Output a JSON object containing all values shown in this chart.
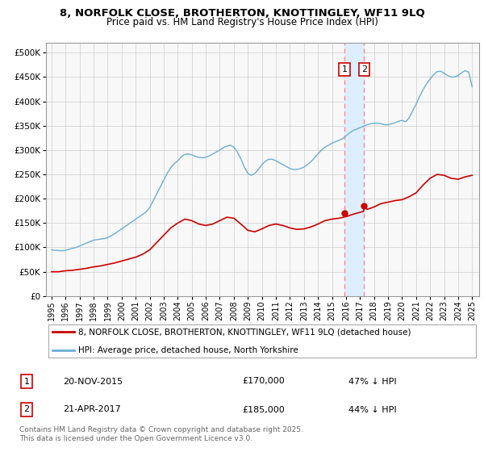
{
  "title_line1": "8, NORFOLK CLOSE, BROTHERTON, KNOTTINGLEY, WF11 9LQ",
  "title_line2": "Price paid vs. HM Land Registry's House Price Index (HPI)",
  "yticks": [
    0,
    50000,
    100000,
    150000,
    200000,
    250000,
    300000,
    350000,
    400000,
    450000,
    500000
  ],
  "ytick_labels": [
    "£0",
    "£50K",
    "£100K",
    "£150K",
    "£200K",
    "£250K",
    "£300K",
    "£350K",
    "£400K",
    "£450K",
    "£500K"
  ],
  "xlim_start": 1994.6,
  "xlim_end": 2025.5,
  "ylim_min": 0,
  "ylim_max": 520000,
  "hpi_color": "#6baed6",
  "price_color": "#cc0000",
  "vline_color": "#ff8888",
  "shade_color": "#ddeeff",
  "transactions": [
    {
      "year": 2015.9,
      "price": 170000,
      "label": "1",
      "date": "20-NOV-2015",
      "amount": "£170,000",
      "pct": "47% ↓ HPI"
    },
    {
      "year": 2017.3,
      "price": 185000,
      "label": "2",
      "date": "21-APR-2017",
      "amount": "£185,000",
      "pct": "44% ↓ HPI"
    }
  ],
  "legend_entry1": "8, NORFOLK CLOSE, BROTHERTON, KNOTTINGLEY, WF11 9LQ (detached house)",
  "legend_entry2": "HPI: Average price, detached house, North Yorkshire",
  "footer": "Contains HM Land Registry data © Crown copyright and database right 2025.\nThis data is licensed under the Open Government Licence v3.0.",
  "hpi_data": [
    [
      1995,
      95000
    ],
    [
      1995.25,
      94000
    ],
    [
      1995.5,
      93500
    ],
    [
      1995.75,
      93000
    ],
    [
      1996,
      94000
    ],
    [
      1996.25,
      96000
    ],
    [
      1996.5,
      98000
    ],
    [
      1996.75,
      100000
    ],
    [
      1997,
      103000
    ],
    [
      1997.25,
      106000
    ],
    [
      1997.5,
      109000
    ],
    [
      1997.75,
      112000
    ],
    [
      1998,
      115000
    ],
    [
      1998.25,
      116000
    ],
    [
      1998.5,
      117000
    ],
    [
      1998.75,
      118000
    ],
    [
      1999,
      120000
    ],
    [
      1999.25,
      124000
    ],
    [
      1999.5,
      128000
    ],
    [
      1999.75,
      133000
    ],
    [
      2000,
      138000
    ],
    [
      2000.25,
      143000
    ],
    [
      2000.5,
      148000
    ],
    [
      2000.75,
      153000
    ],
    [
      2001,
      158000
    ],
    [
      2001.25,
      163000
    ],
    [
      2001.5,
      168000
    ],
    [
      2001.75,
      173000
    ],
    [
      2002,
      182000
    ],
    [
      2002.25,
      196000
    ],
    [
      2002.5,
      210000
    ],
    [
      2002.75,
      224000
    ],
    [
      2003,
      238000
    ],
    [
      2003.25,
      252000
    ],
    [
      2003.5,
      264000
    ],
    [
      2003.75,
      272000
    ],
    [
      2004,
      278000
    ],
    [
      2004.25,
      286000
    ],
    [
      2004.5,
      291000
    ],
    [
      2004.75,
      292000
    ],
    [
      2005,
      290000
    ],
    [
      2005.25,
      287000
    ],
    [
      2005.5,
      285000
    ],
    [
      2005.75,
      284000
    ],
    [
      2006,
      285000
    ],
    [
      2006.25,
      288000
    ],
    [
      2006.5,
      292000
    ],
    [
      2006.75,
      296000
    ],
    [
      2007,
      300000
    ],
    [
      2007.25,
      305000
    ],
    [
      2007.5,
      308000
    ],
    [
      2007.75,
      310000
    ],
    [
      2008,
      306000
    ],
    [
      2008.25,
      296000
    ],
    [
      2008.5,
      282000
    ],
    [
      2008.75,
      265000
    ],
    [
      2009,
      252000
    ],
    [
      2009.25,
      248000
    ],
    [
      2009.5,
      252000
    ],
    [
      2009.75,
      260000
    ],
    [
      2010,
      270000
    ],
    [
      2010.25,
      277000
    ],
    [
      2010.5,
      281000
    ],
    [
      2010.75,
      281000
    ],
    [
      2011,
      278000
    ],
    [
      2011.25,
      274000
    ],
    [
      2011.5,
      270000
    ],
    [
      2011.75,
      266000
    ],
    [
      2012,
      262000
    ],
    [
      2012.25,
      260000
    ],
    [
      2012.5,
      260000
    ],
    [
      2012.75,
      262000
    ],
    [
      2013,
      265000
    ],
    [
      2013.25,
      270000
    ],
    [
      2013.5,
      276000
    ],
    [
      2013.75,
      284000
    ],
    [
      2014,
      292000
    ],
    [
      2014.25,
      300000
    ],
    [
      2014.5,
      306000
    ],
    [
      2014.75,
      310000
    ],
    [
      2015,
      314000
    ],
    [
      2015.25,
      317000
    ],
    [
      2015.5,
      320000
    ],
    [
      2015.75,
      323000
    ],
    [
      2016,
      329000
    ],
    [
      2016.25,
      335000
    ],
    [
      2016.5,
      340000
    ],
    [
      2016.75,
      343000
    ],
    [
      2017,
      346000
    ],
    [
      2017.25,
      349000
    ],
    [
      2017.5,
      352000
    ],
    [
      2017.75,
      354000
    ],
    [
      2018,
      355000
    ],
    [
      2018.25,
      355000
    ],
    [
      2018.5,
      354000
    ],
    [
      2018.75,
      352000
    ],
    [
      2019,
      352000
    ],
    [
      2019.25,
      354000
    ],
    [
      2019.5,
      356000
    ],
    [
      2019.75,
      359000
    ],
    [
      2020,
      361000
    ],
    [
      2020.25,
      358000
    ],
    [
      2020.5,
      366000
    ],
    [
      2020.75,
      380000
    ],
    [
      2021,
      394000
    ],
    [
      2021.25,
      410000
    ],
    [
      2021.5,
      424000
    ],
    [
      2021.75,
      436000
    ],
    [
      2022,
      446000
    ],
    [
      2022.25,
      455000
    ],
    [
      2022.5,
      461000
    ],
    [
      2022.75,
      462000
    ],
    [
      2023,
      458000
    ],
    [
      2023.25,
      453000
    ],
    [
      2023.5,
      450000
    ],
    [
      2023.75,
      450000
    ],
    [
      2024,
      453000
    ],
    [
      2024.25,
      459000
    ],
    [
      2024.5,
      463000
    ],
    [
      2024.75,
      460000
    ],
    [
      2025,
      430000
    ]
  ],
  "price_data": [
    [
      1995,
      50000
    ],
    [
      1995.5,
      50000
    ],
    [
      1996,
      52000
    ],
    [
      1996.5,
      53000
    ],
    [
      1997,
      55000
    ],
    [
      1997.5,
      57000
    ],
    [
      1998,
      60000
    ],
    [
      1998.5,
      62000
    ],
    [
      1999,
      65000
    ],
    [
      1999.5,
      68000
    ],
    [
      2000,
      72000
    ],
    [
      2000.5,
      76000
    ],
    [
      2001,
      80000
    ],
    [
      2001.5,
      86000
    ],
    [
      2002,
      95000
    ],
    [
      2002.5,
      110000
    ],
    [
      2003,
      125000
    ],
    [
      2003.5,
      140000
    ],
    [
      2004,
      150000
    ],
    [
      2004.5,
      158000
    ],
    [
      2005,
      155000
    ],
    [
      2005.5,
      148000
    ],
    [
      2006,
      145000
    ],
    [
      2006.5,
      148000
    ],
    [
      2007,
      155000
    ],
    [
      2007.5,
      162000
    ],
    [
      2008,
      160000
    ],
    [
      2008.5,
      148000
    ],
    [
      2009,
      135000
    ],
    [
      2009.5,
      132000
    ],
    [
      2010,
      138000
    ],
    [
      2010.5,
      145000
    ],
    [
      2011,
      148000
    ],
    [
      2011.5,
      145000
    ],
    [
      2012,
      140000
    ],
    [
      2012.5,
      137000
    ],
    [
      2013,
      138000
    ],
    [
      2013.5,
      142000
    ],
    [
      2014,
      148000
    ],
    [
      2014.5,
      155000
    ],
    [
      2015,
      158000
    ],
    [
      2015.5,
      160000
    ],
    [
      2015.85,
      162000
    ],
    [
      2015.9,
      170000
    ],
    [
      2016,
      163000
    ],
    [
      2016.5,
      168000
    ],
    [
      2017,
      172000
    ],
    [
      2017.25,
      174000
    ],
    [
      2017.3,
      185000
    ],
    [
      2017.5,
      178000
    ],
    [
      2018,
      183000
    ],
    [
      2018.5,
      190000
    ],
    [
      2019,
      193000
    ],
    [
      2019.5,
      196000
    ],
    [
      2020,
      198000
    ],
    [
      2020.5,
      204000
    ],
    [
      2021,
      212000
    ],
    [
      2021.5,
      228000
    ],
    [
      2022,
      242000
    ],
    [
      2022.5,
      250000
    ],
    [
      2023,
      248000
    ],
    [
      2023.5,
      242000
    ],
    [
      2024,
      240000
    ],
    [
      2024.5,
      245000
    ],
    [
      2025,
      248000
    ]
  ]
}
